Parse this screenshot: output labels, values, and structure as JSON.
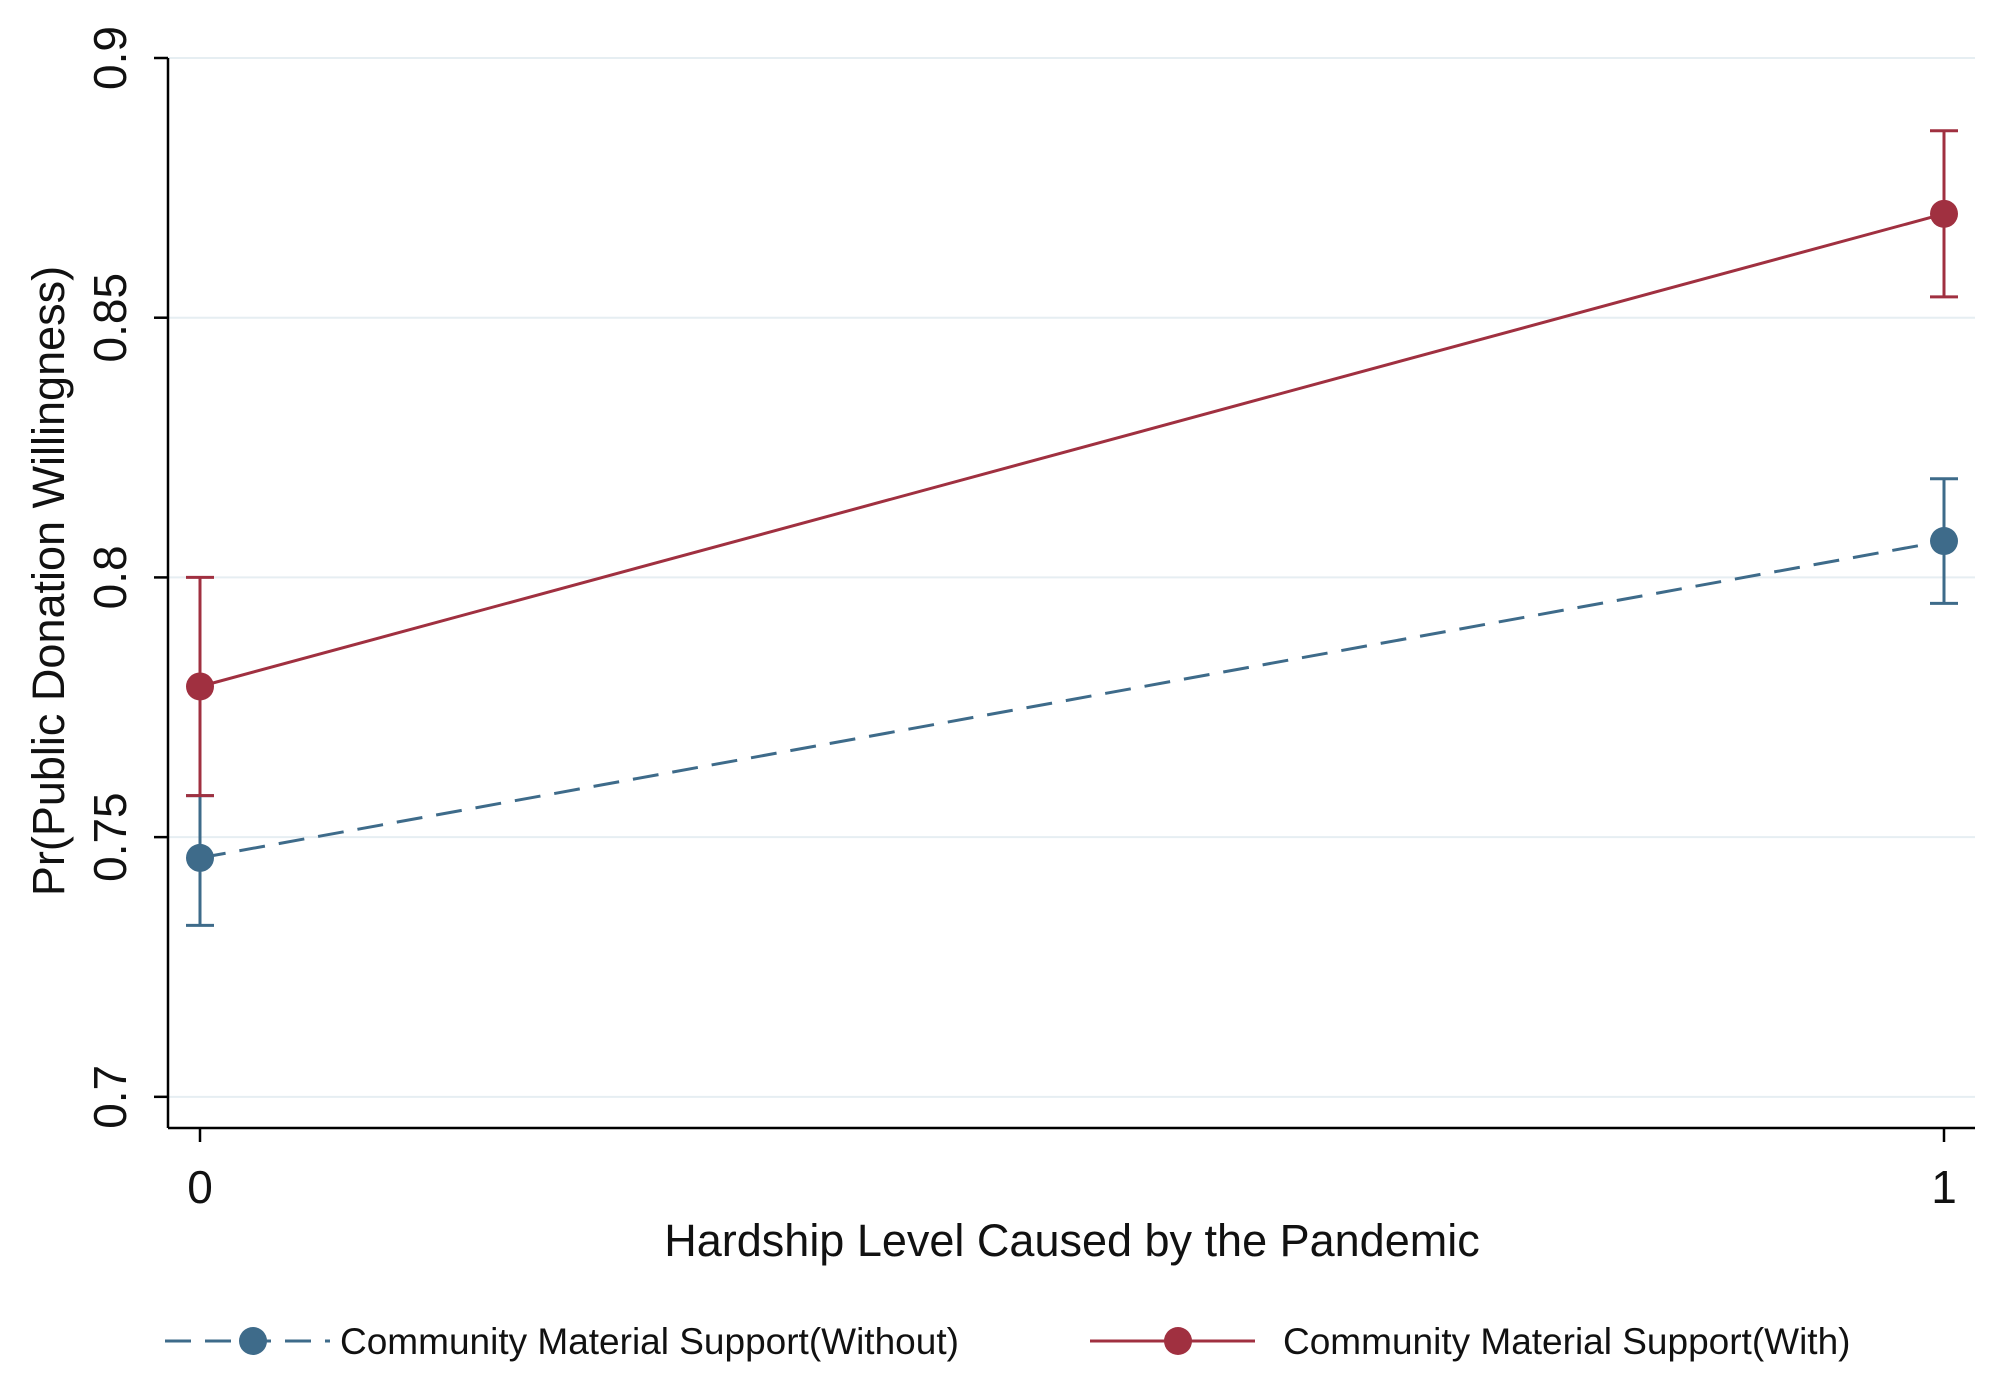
{
  "chart_data": {
    "type": "line",
    "xlabel": "Hardship Level Caused by the Pandemic",
    "ylabel": "Pr(Public Donation Willingness)",
    "x": [
      0,
      1
    ],
    "x_ticks": [
      "0",
      "1"
    ],
    "xlim": [
      -0.019,
      1.019
    ],
    "ylim": [
      0.694,
      0.9
    ],
    "y_ticks": [
      "0.7",
      "0.75",
      "0.8",
      "0.85",
      "0.9"
    ],
    "grid": true,
    "legend_position": "bottom",
    "series": [
      {
        "name": "Community Material Support(Without)",
        "color": "#3e6b8a",
        "line_style": "dashed",
        "values": [
          0.746,
          0.807
        ],
        "ci_low": [
          0.733,
          0.795
        ],
        "ci_high": [
          0.758,
          0.819
        ]
      },
      {
        "name": "Community Material Support(With)",
        "color": "#a03040",
        "line_style": "solid",
        "values": [
          0.779,
          0.87
        ],
        "ci_low": [
          0.758,
          0.854
        ],
        "ci_high": [
          0.8,
          0.886
        ]
      }
    ]
  }
}
